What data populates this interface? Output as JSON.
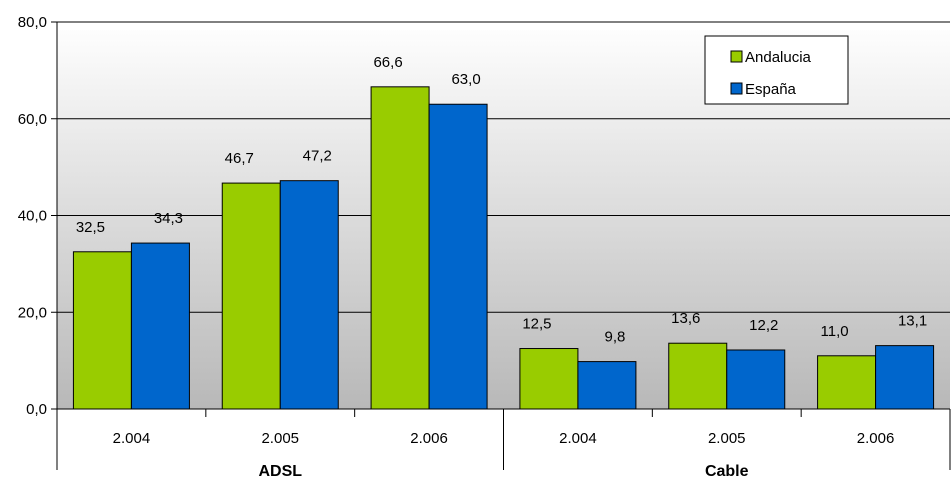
{
  "chart_data": {
    "type": "bar",
    "categories": [
      "2.004",
      "2.005",
      "2.006",
      "2.004",
      "2.005",
      "2.006"
    ],
    "groups": [
      {
        "label": "ADSL",
        "start": 0,
        "end": 3
      },
      {
        "label": "Cable",
        "start": 3,
        "end": 6
      }
    ],
    "series": [
      {
        "name": "Andalucia",
        "color": "#99CC00",
        "values": [
          32.5,
          46.7,
          66.6,
          12.5,
          13.6,
          11.0
        ],
        "labels": [
          "32,5",
          "46,7",
          "66,6",
          "12,5",
          "13,6",
          "11,0"
        ]
      },
      {
        "name": "España",
        "color": "#0066CC",
        "values": [
          34.3,
          47.2,
          63.0,
          9.8,
          12.2,
          13.1
        ],
        "labels": [
          "34,3",
          "47,2",
          "63,0",
          "9,8",
          "12,2",
          "13,1"
        ]
      }
    ],
    "yticks": [
      0,
      20,
      40,
      60,
      80
    ],
    "ytick_labels": [
      "0,0",
      "20,0",
      "40,0",
      "60,0",
      "80,0"
    ],
    "ylim": [
      0,
      80
    ],
    "grid": true,
    "legend_position": "top-right",
    "title": "",
    "xlabel": "",
    "ylabel": ""
  }
}
